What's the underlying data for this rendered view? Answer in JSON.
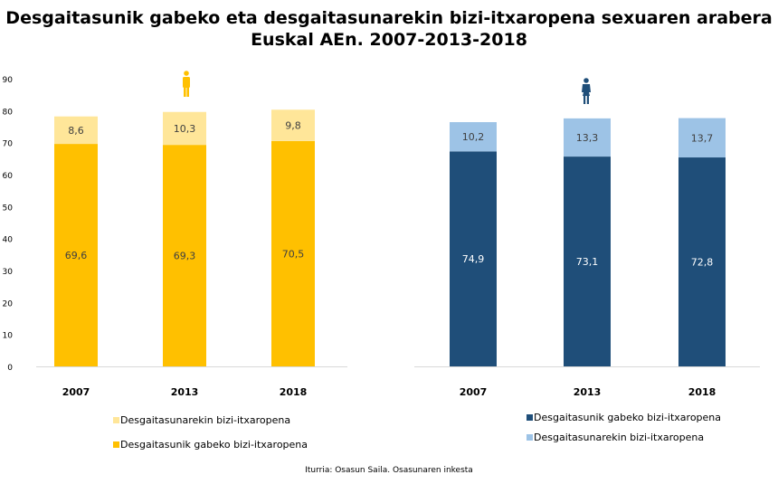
{
  "chart_data": [
    {
      "type": "bar",
      "stacked": true,
      "title": "Desgaitasunik gabeko eta desgaitasunarekin bizi-itxaropena sexuaren arabera Euskal AEn. 2007-2013-2018",
      "group": "Gizonak",
      "icon": "male-icon",
      "categories": [
        "2007",
        "2013",
        "2018"
      ],
      "ylim": [
        0,
        90
      ],
      "yticks": [
        0,
        10,
        20,
        30,
        40,
        50,
        60,
        70,
        80,
        90
      ],
      "series": [
        {
          "name": "Desgaitasunik gabeko bizi-itxaropena",
          "values": [
            69.6,
            69.3,
            70.5
          ],
          "labels": [
            "69,6",
            "69,3",
            "70,5"
          ],
          "color": "#FFC000"
        },
        {
          "name": "Desgaitasunarekin bizi-itxaropena",
          "values": [
            8.6,
            10.3,
            9.8
          ],
          "labels": [
            "8,6",
            "10,3",
            "9,8"
          ],
          "color": "#FFE699"
        }
      ],
      "legend": [
        "Desgaitasunarekin bizi-itxaropena",
        "Desgaitasunik gabeko bizi-itxaropena"
      ],
      "legend_position": "bottom"
    },
    {
      "type": "bar",
      "stacked": true,
      "group": "Emakumeak",
      "icon": "female-icon",
      "categories": [
        "2007",
        "2013",
        "2018"
      ],
      "ylim": [
        0,
        100
      ],
      "series": [
        {
          "name": "Desgaitasunik gabeko bizi-itxaropena",
          "values": [
            74.9,
            73.1,
            72.8
          ],
          "labels": [
            "74,9",
            "73,1",
            "72,8"
          ],
          "color": "#1F4E79"
        },
        {
          "name": "Desgaitasunarekin bizi-itxaropena",
          "values": [
            10.2,
            13.3,
            13.7
          ],
          "labels": [
            "10,2",
            "13,3",
            "13,7"
          ],
          "color": "#9DC3E6"
        }
      ],
      "legend": [
        "Desgaitasunik gabeko bizi-itxaropena",
        "Desgaitasunarekin bizi-itxaropena"
      ],
      "legend_position": "bottom"
    }
  ],
  "title_line1": "Desgaitasunik gabeko eta desgaitasunarekin bizi-itxaropena sexuaren arabera",
  "title_line2": "Euskal AEn. 2007-2013-2018",
  "source": "Iturria: Osasun Saila. Osasunaren inkesta"
}
